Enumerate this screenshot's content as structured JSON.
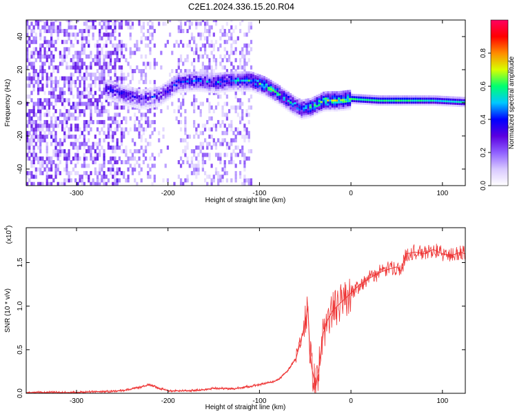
{
  "title": "C2E1.2024.336.15.20.R04",
  "chart_data": [
    {
      "type": "heatmap",
      "xlabel": "Height of straight line (km)",
      "ylabel": "Frequency (Hz)",
      "xlim": [
        -355,
        125
      ],
      "ylim": [
        -50,
        50
      ],
      "xticks": [
        -300,
        -200,
        -100,
        0,
        100
      ],
      "yticks": [
        -40,
        -20,
        0,
        20,
        40
      ],
      "colorbar": {
        "label": "Normalized spectral amplitude",
        "range": [
          0,
          1
        ],
        "ticks": [
          "0.0",
          "0.2",
          "0.4",
          "0.6",
          "0.8"
        ],
        "colors": [
          "#ffffff",
          "#d8c8ff",
          "#9060ff",
          "#5a00e0",
          "#0000ff",
          "#00c8ff",
          "#00ff70",
          "#d8ff00",
          "#ff8c00",
          "#ff0000",
          "#ff0060"
        ]
      },
      "ridge": {
        "x": [
          -265,
          -250,
          -230,
          -210,
          -190,
          -170,
          -150,
          -130,
          -110,
          -95,
          -80,
          -65,
          -55,
          -45,
          -30,
          -15,
          0,
          30,
          60,
          90,
          125
        ],
        "frequency": [
          8,
          5,
          2,
          4,
          12,
          13,
          12,
          13,
          13,
          10,
          5,
          -1,
          -4,
          -3,
          1,
          1,
          2,
          1,
          1,
          1,
          0
        ],
        "amplitude": [
          0.3,
          0.3,
          0.25,
          0.3,
          0.35,
          0.35,
          0.4,
          0.4,
          0.5,
          0.55,
          0.5,
          0.45,
          0.45,
          0.5,
          0.6,
          0.6,
          0.6,
          0.6,
          0.6,
          0.55,
          0.55
        ]
      }
    },
    {
      "type": "line",
      "xlabel": "Height of straight line (km)",
      "ylabel": "SNR (10 * v/v)",
      "multiplier": "(x10",
      "multiplier_exponent": "4",
      "xlim": [
        -355,
        125
      ],
      "ylim": [
        0,
        1.9
      ],
      "xticks": [
        -300,
        -200,
        -100,
        0,
        100
      ],
      "yticks": [
        "0.0",
        "0.5",
        "1.0",
        "1.5"
      ],
      "color": "#ee3333",
      "series": [
        {
          "x": [
            -355,
            -300,
            -250,
            -230,
            -220,
            -210,
            -200,
            -180,
            -160,
            -150,
            -130,
            -110,
            -100,
            -90,
            -80,
            -70,
            -60,
            -55,
            -50,
            -47,
            -45,
            -43,
            -40,
            -38,
            -35,
            -30,
            -25,
            -20,
            -15,
            -10,
            -5,
            0,
            10,
            20,
            30,
            40,
            50,
            55,
            60,
            70,
            80,
            90,
            100,
            110,
            120,
            125
          ],
          "y": [
            0.01,
            0.01,
            0.03,
            0.07,
            0.1,
            0.06,
            0.03,
            0.03,
            0.04,
            0.06,
            0.05,
            0.08,
            0.1,
            0.12,
            0.15,
            0.25,
            0.4,
            0.6,
            0.8,
            1.0,
            0.5,
            0.3,
            0.15,
            0.1,
            0.3,
            0.7,
            0.85,
            0.95,
            1.0,
            1.05,
            1.1,
            1.15,
            1.25,
            1.32,
            1.38,
            1.42,
            1.45,
            1.4,
            1.6,
            1.62,
            1.6,
            1.65,
            1.6,
            1.58,
            1.62,
            1.6
          ]
        }
      ]
    }
  ]
}
